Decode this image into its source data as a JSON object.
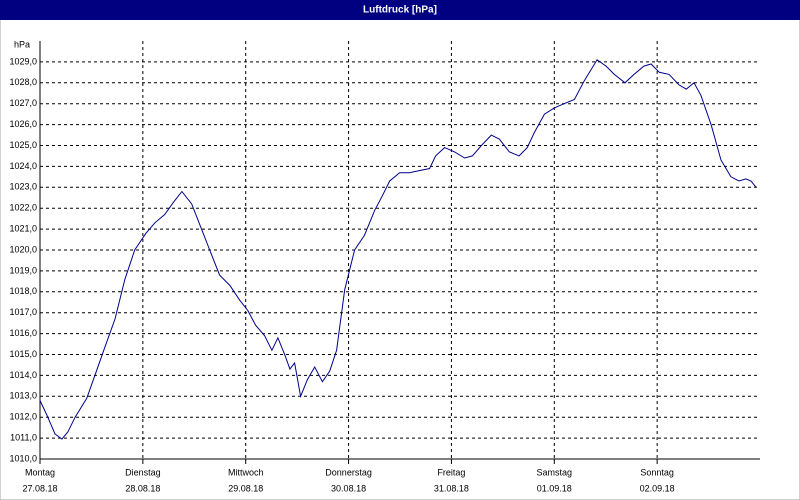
{
  "chart_data": {
    "type": "line",
    "title": "Luftdruck [hPa]",
    "y_unit": "hPa",
    "xlim": [
      0,
      168
    ],
    "xticks": [
      {
        "value": 0,
        "label": "Montag"
      },
      {
        "value": 24,
        "label": "Dienstag"
      },
      {
        "value": 48,
        "label": "Mittwoch"
      },
      {
        "value": 72,
        "label": "Donnerstag"
      },
      {
        "value": 96,
        "label": "Freitag"
      },
      {
        "value": 120,
        "label": "Samstag"
      },
      {
        "value": 144,
        "label": "Sonntag"
      }
    ],
    "xtick_dates": [
      "27.08.18",
      "28.08.18",
      "29.08.18",
      "30.08.18",
      "31.08.18",
      "01.09.18",
      "02.09.18"
    ],
    "ylim": [
      1010,
      1030
    ],
    "yticks": [
      {
        "value": 1010,
        "label": "1010,0"
      },
      {
        "value": 1011,
        "label": "1011,0"
      },
      {
        "value": 1012,
        "label": "1012,0"
      },
      {
        "value": 1013,
        "label": "1013,0"
      },
      {
        "value": 1014,
        "label": "1014,0"
      },
      {
        "value": 1015,
        "label": "1015,0"
      },
      {
        "value": 1016,
        "label": "1016,0"
      },
      {
        "value": 1017,
        "label": "1017,0"
      },
      {
        "value": 1018,
        "label": "1018,0"
      },
      {
        "value": 1019,
        "label": "1019,0"
      },
      {
        "value": 1020,
        "label": "1020,0"
      },
      {
        "value": 1021,
        "label": "1021,0"
      },
      {
        "value": 1022,
        "label": "1022,0"
      },
      {
        "value": 1023,
        "label": "1023,0"
      },
      {
        "value": 1024,
        "label": "1024,0"
      },
      {
        "value": 1025,
        "label": "1025,0"
      },
      {
        "value": 1026,
        "label": "1026,0"
      },
      {
        "value": 1027,
        "label": "1027,0"
      },
      {
        "value": 1028,
        "label": "1028,0"
      },
      {
        "value": 1029,
        "label": "1029,0"
      }
    ],
    "grid": true,
    "series": [
      {
        "name": "Luftdruck",
        "color": "#00008b",
        "x": [
          0,
          1.6,
          3.5,
          5.1,
          6.5,
          8.2,
          10.9,
          12.8,
          14.7,
          17.5,
          19.8,
          22.1,
          24.7,
          26.8,
          29.1,
          31.2,
          33.1,
          35.4,
          37.3,
          39.6,
          41.9,
          44.3,
          46.6,
          48.5,
          50.3,
          52.4,
          54.1,
          55.5,
          57.1,
          58.3,
          59.4,
          60.8,
          62.4,
          64.1,
          65.9,
          67.6,
          69.2,
          71.1,
          73.4,
          75.7,
          78.1,
          79.9,
          81.6,
          83.9,
          86.2,
          88.5,
          90.9,
          92.3,
          94.4,
          96.7,
          99.1,
          100.9,
          103.0,
          105.3,
          107.2,
          109.5,
          111.8,
          113.7,
          115.3,
          117.7,
          120.0,
          122.3,
          124.7,
          127.0,
          130.0,
          132.1,
          134.0,
          136.5,
          138.6,
          140.9,
          142.6,
          144.5,
          146.8,
          149.1,
          150.8,
          152.6,
          154.2,
          156.6,
          158.9,
          161.2,
          163.1,
          164.7,
          165.9,
          167.1
        ],
        "values": [
          1012.8,
          1012.1,
          1011.2,
          1010.95,
          1011.3,
          1012.0,
          1012.9,
          1014.0,
          1015.1,
          1016.7,
          1018.6,
          1020.0,
          1020.8,
          1021.3,
          1021.7,
          1022.3,
          1022.8,
          1022.2,
          1021.2,
          1020.0,
          1018.8,
          1018.3,
          1017.6,
          1017.1,
          1016.4,
          1015.9,
          1015.2,
          1015.8,
          1015.0,
          1014.3,
          1014.6,
          1013.0,
          1013.8,
          1014.4,
          1013.7,
          1014.2,
          1015.2,
          1018.1,
          1020.0,
          1020.7,
          1021.9,
          1022.6,
          1023.3,
          1023.7,
          1023.7,
          1023.8,
          1023.9,
          1024.5,
          1024.9,
          1024.7,
          1024.4,
          1024.5,
          1025.0,
          1025.5,
          1025.3,
          1024.7,
          1024.5,
          1024.9,
          1025.6,
          1026.5,
          1026.8,
          1027.0,
          1027.2,
          1028.1,
          1029.1,
          1028.8,
          1028.4,
          1028.0,
          1028.4,
          1028.8,
          1028.9,
          1028.5,
          1028.4,
          1027.9,
          1027.7,
          1028.0,
          1027.4,
          1026.0,
          1024.3,
          1023.5,
          1023.3,
          1023.4,
          1023.3,
          1023.0
        ]
      }
    ]
  }
}
